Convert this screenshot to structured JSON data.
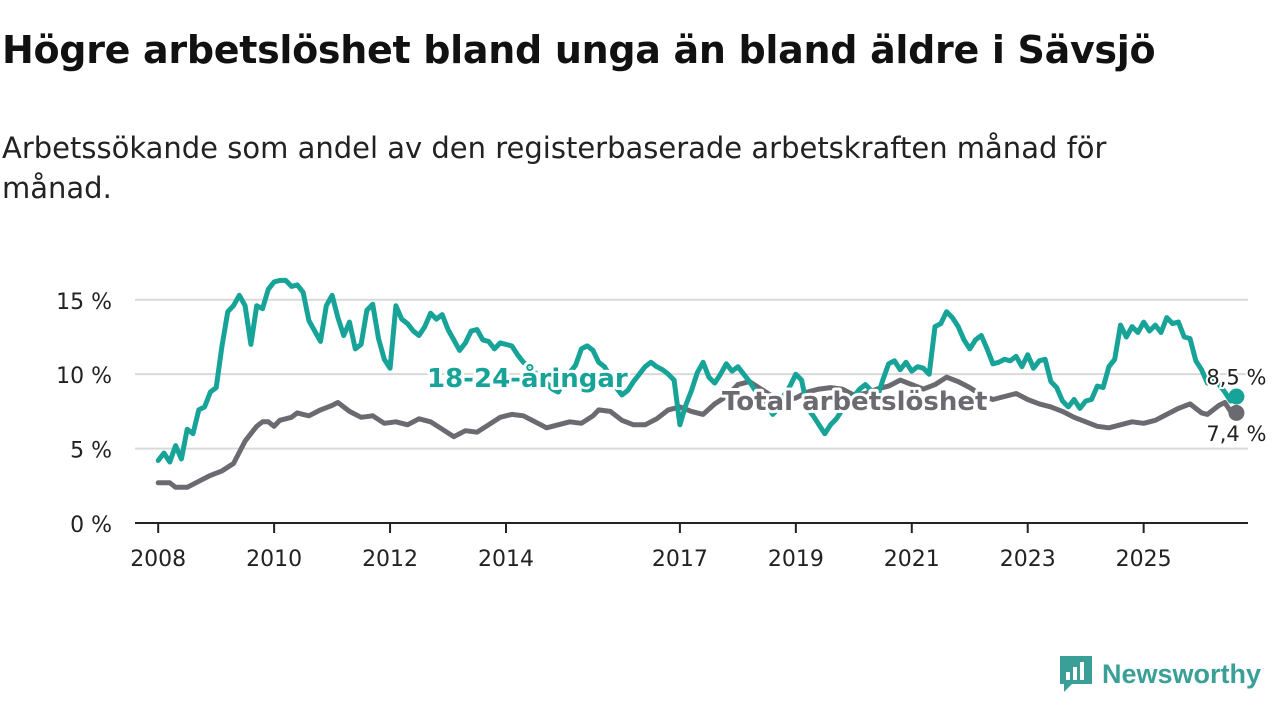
{
  "title": "Högre arbetslöshet bland unga än bland äldre i Sävsjö",
  "subtitle": "Arbetssökande som andel av den registerbaserade arbetskraften månad för månad.",
  "brand": {
    "name": "Newsworthy",
    "icon": "newsworthy-logo-icon"
  },
  "colors": {
    "youth": "#17a397",
    "total": "#6b6a70",
    "grid": "#d9d9d9",
    "axis": "#222222"
  },
  "chart_data": {
    "type": "line",
    "title": "Högre arbetslöshet bland unga än bland äldre i Sävsjö",
    "ylabel": "",
    "xlabel": "",
    "ylim": [
      0,
      17
    ],
    "xlim": [
      2007.6,
      2026.8
    ],
    "y_ticks": [
      0,
      5,
      10,
      15
    ],
    "y_tick_labels": [
      "0 %",
      "5 %",
      "10 %",
      "15 %"
    ],
    "x_ticks": [
      2008,
      2010,
      2012,
      2014,
      2017,
      2019,
      2021,
      2023,
      2025
    ],
    "x_tick_labels": [
      "2008",
      "2010",
      "2012",
      "2014",
      "2017",
      "2019",
      "2021",
      "2023",
      "2025"
    ],
    "grid": true,
    "series": [
      {
        "name": "18-24-åringar",
        "label": "18-24-åringar",
        "end_label": "8,5 %",
        "points": [
          [
            2008.0,
            4.2
          ],
          [
            2008.1,
            4.7
          ],
          [
            2008.2,
            4.1
          ],
          [
            2008.3,
            5.2
          ],
          [
            2008.4,
            4.3
          ],
          [
            2008.5,
            6.3
          ],
          [
            2008.6,
            6.0
          ],
          [
            2008.7,
            7.6
          ],
          [
            2008.8,
            7.8
          ],
          [
            2008.9,
            8.8
          ],
          [
            2009.0,
            9.1
          ],
          [
            2009.1,
            11.9
          ],
          [
            2009.2,
            14.2
          ],
          [
            2009.3,
            14.6
          ],
          [
            2009.4,
            15.3
          ],
          [
            2009.5,
            14.6
          ],
          [
            2009.6,
            12.0
          ],
          [
            2009.7,
            14.6
          ],
          [
            2009.8,
            14.4
          ],
          [
            2009.9,
            15.7
          ],
          [
            2010.0,
            16.2
          ],
          [
            2010.1,
            16.3
          ],
          [
            2010.2,
            16.3
          ],
          [
            2010.3,
            15.9
          ],
          [
            2010.4,
            16.0
          ],
          [
            2010.5,
            15.5
          ],
          [
            2010.6,
            13.6
          ],
          [
            2010.7,
            12.9
          ],
          [
            2010.8,
            12.2
          ],
          [
            2010.9,
            14.6
          ],
          [
            2011.0,
            15.3
          ],
          [
            2011.1,
            13.8
          ],
          [
            2011.2,
            12.6
          ],
          [
            2011.3,
            13.5
          ],
          [
            2011.4,
            11.7
          ],
          [
            2011.5,
            12.0
          ],
          [
            2011.6,
            14.3
          ],
          [
            2011.7,
            14.7
          ],
          [
            2011.8,
            12.4
          ],
          [
            2011.9,
            11.0
          ],
          [
            2012.0,
            10.4
          ],
          [
            2012.1,
            14.6
          ],
          [
            2012.2,
            13.7
          ],
          [
            2012.3,
            13.4
          ],
          [
            2012.4,
            12.9
          ],
          [
            2012.5,
            12.6
          ],
          [
            2012.6,
            13.2
          ],
          [
            2012.7,
            14.1
          ],
          [
            2012.8,
            13.7
          ],
          [
            2012.9,
            14.0
          ],
          [
            2013.0,
            13.0
          ],
          [
            2013.1,
            12.3
          ],
          [
            2013.2,
            11.6
          ],
          [
            2013.3,
            12.1
          ],
          [
            2013.4,
            12.9
          ],
          [
            2013.5,
            13.0
          ],
          [
            2013.6,
            12.3
          ],
          [
            2013.7,
            12.2
          ],
          [
            2013.8,
            11.7
          ],
          [
            2013.9,
            12.1
          ],
          [
            2014.0,
            12.0
          ],
          [
            2014.1,
            11.9
          ],
          [
            2014.2,
            11.3
          ],
          [
            2014.3,
            10.8
          ],
          [
            2014.4,
            10.5
          ],
          [
            2014.5,
            10.1
          ],
          [
            2014.6,
            9.8
          ],
          [
            2014.7,
            9.4
          ],
          [
            2014.8,
            9.0
          ],
          [
            2014.9,
            8.8
          ],
          [
            2015.0,
            9.5
          ],
          [
            2015.1,
            10.1
          ],
          [
            2015.2,
            10.6
          ],
          [
            2015.3,
            11.7
          ],
          [
            2015.4,
            11.9
          ],
          [
            2015.5,
            11.6
          ],
          [
            2015.6,
            10.8
          ],
          [
            2015.7,
            10.5
          ],
          [
            2015.8,
            9.8
          ],
          [
            2015.9,
            9.1
          ],
          [
            2016.0,
            8.6
          ],
          [
            2016.1,
            8.9
          ],
          [
            2016.2,
            9.5
          ],
          [
            2016.3,
            10.0
          ],
          [
            2016.4,
            10.5
          ],
          [
            2016.5,
            10.8
          ],
          [
            2016.6,
            10.5
          ],
          [
            2016.7,
            10.3
          ],
          [
            2016.8,
            10.0
          ],
          [
            2016.9,
            9.6
          ],
          [
            2017.0,
            6.6
          ],
          [
            2017.1,
            7.9
          ],
          [
            2017.2,
            8.9
          ],
          [
            2017.3,
            10.1
          ],
          [
            2017.4,
            10.8
          ],
          [
            2017.5,
            9.8
          ],
          [
            2017.6,
            9.4
          ],
          [
            2017.7,
            10.0
          ],
          [
            2017.8,
            10.7
          ],
          [
            2017.9,
            10.2
          ],
          [
            2018.0,
            10.5
          ],
          [
            2018.1,
            10.0
          ],
          [
            2018.2,
            9.5
          ],
          [
            2018.3,
            8.9
          ],
          [
            2018.4,
            8.4
          ],
          [
            2018.5,
            8.0
          ],
          [
            2018.6,
            7.3
          ],
          [
            2018.7,
            7.7
          ],
          [
            2018.8,
            8.6
          ],
          [
            2018.9,
            9.2
          ],
          [
            2019.0,
            10.0
          ],
          [
            2019.1,
            9.6
          ],
          [
            2019.2,
            7.7
          ],
          [
            2019.3,
            7.2
          ],
          [
            2019.4,
            6.6
          ],
          [
            2019.5,
            6.0
          ],
          [
            2019.6,
            6.6
          ],
          [
            2019.7,
            7.0
          ],
          [
            2019.8,
            7.6
          ],
          [
            2019.9,
            8.1
          ],
          [
            2020.0,
            8.5
          ],
          [
            2020.1,
            9.0
          ],
          [
            2020.2,
            9.3
          ],
          [
            2020.3,
            8.9
          ],
          [
            2020.4,
            8.4
          ],
          [
            2020.5,
            9.6
          ],
          [
            2020.6,
            10.7
          ],
          [
            2020.7,
            10.9
          ],
          [
            2020.8,
            10.3
          ],
          [
            2020.9,
            10.8
          ],
          [
            2021.0,
            10.2
          ],
          [
            2021.1,
            10.5
          ],
          [
            2021.2,
            10.4
          ],
          [
            2021.3,
            10.0
          ],
          [
            2021.4,
            13.2
          ],
          [
            2021.5,
            13.4
          ],
          [
            2021.6,
            14.2
          ],
          [
            2021.7,
            13.8
          ],
          [
            2021.8,
            13.2
          ],
          [
            2021.9,
            12.3
          ],
          [
            2022.0,
            11.7
          ],
          [
            2022.1,
            12.3
          ],
          [
            2022.2,
            12.6
          ],
          [
            2022.3,
            11.7
          ],
          [
            2022.4,
            10.7
          ],
          [
            2022.5,
            10.8
          ],
          [
            2022.6,
            11.0
          ],
          [
            2022.7,
            10.9
          ],
          [
            2022.8,
            11.2
          ],
          [
            2022.9,
            10.5
          ],
          [
            2023.0,
            11.3
          ],
          [
            2023.1,
            10.4
          ],
          [
            2023.2,
            10.9
          ],
          [
            2023.3,
            11.0
          ],
          [
            2023.4,
            9.5
          ],
          [
            2023.5,
            9.1
          ],
          [
            2023.6,
            8.2
          ],
          [
            2023.7,
            7.8
          ],
          [
            2023.8,
            8.3
          ],
          [
            2023.9,
            7.7
          ],
          [
            2024.0,
            8.2
          ],
          [
            2024.1,
            8.3
          ],
          [
            2024.2,
            9.2
          ],
          [
            2024.3,
            9.1
          ],
          [
            2024.4,
            10.5
          ],
          [
            2024.5,
            11.0
          ],
          [
            2024.6,
            13.3
          ],
          [
            2024.7,
            12.5
          ],
          [
            2024.8,
            13.2
          ],
          [
            2024.9,
            12.8
          ],
          [
            2025.0,
            13.5
          ],
          [
            2025.1,
            12.9
          ],
          [
            2025.2,
            13.3
          ],
          [
            2025.3,
            12.8
          ],
          [
            2025.4,
            13.8
          ],
          [
            2025.5,
            13.4
          ],
          [
            2025.6,
            13.5
          ],
          [
            2025.7,
            12.5
          ],
          [
            2025.8,
            12.4
          ],
          [
            2025.9,
            10.9
          ],
          [
            2026.0,
            10.3
          ],
          [
            2026.1,
            9.4
          ],
          [
            2026.2,
            9.8
          ],
          [
            2026.3,
            9.3
          ],
          [
            2026.4,
            8.8
          ],
          [
            2026.5,
            8.2
          ],
          [
            2026.6,
            8.5
          ]
        ]
      },
      {
        "name": "Total arbetslöshet",
        "label": "Total arbetslöshet",
        "end_label": "7,4 %",
        "points": [
          [
            2008.0,
            2.7
          ],
          [
            2008.2,
            2.7
          ],
          [
            2008.3,
            2.4
          ],
          [
            2008.5,
            2.4
          ],
          [
            2008.7,
            2.8
          ],
          [
            2008.9,
            3.2
          ],
          [
            2009.1,
            3.5
          ],
          [
            2009.3,
            4.0
          ],
          [
            2009.5,
            5.5
          ],
          [
            2009.7,
            6.5
          ],
          [
            2009.8,
            6.8
          ],
          [
            2009.9,
            6.8
          ],
          [
            2010.0,
            6.5
          ],
          [
            2010.1,
            6.9
          ],
          [
            2010.3,
            7.1
          ],
          [
            2010.4,
            7.4
          ],
          [
            2010.5,
            7.3
          ],
          [
            2010.6,
            7.2
          ],
          [
            2010.7,
            7.4
          ],
          [
            2010.8,
            7.6
          ],
          [
            2011.0,
            7.9
          ],
          [
            2011.1,
            8.1
          ],
          [
            2011.3,
            7.5
          ],
          [
            2011.5,
            7.1
          ],
          [
            2011.7,
            7.2
          ],
          [
            2011.9,
            6.7
          ],
          [
            2012.1,
            6.8
          ],
          [
            2012.3,
            6.6
          ],
          [
            2012.5,
            7.0
          ],
          [
            2012.7,
            6.8
          ],
          [
            2012.9,
            6.3
          ],
          [
            2013.1,
            5.8
          ],
          [
            2013.3,
            6.2
          ],
          [
            2013.5,
            6.1
          ],
          [
            2013.7,
            6.6
          ],
          [
            2013.9,
            7.1
          ],
          [
            2014.1,
            7.3
          ],
          [
            2014.3,
            7.2
          ],
          [
            2014.5,
            6.8
          ],
          [
            2014.7,
            6.4
          ],
          [
            2014.9,
            6.6
          ],
          [
            2015.1,
            6.8
          ],
          [
            2015.3,
            6.7
          ],
          [
            2015.5,
            7.2
          ],
          [
            2015.6,
            7.6
          ],
          [
            2015.8,
            7.5
          ],
          [
            2016.0,
            6.9
          ],
          [
            2016.2,
            6.6
          ],
          [
            2016.4,
            6.6
          ],
          [
            2016.6,
            7.0
          ],
          [
            2016.8,
            7.6
          ],
          [
            2017.0,
            7.8
          ],
          [
            2017.2,
            7.5
          ],
          [
            2017.4,
            7.3
          ],
          [
            2017.6,
            8.0
          ],
          [
            2017.8,
            8.5
          ],
          [
            2018.0,
            9.3
          ],
          [
            2018.2,
            9.5
          ],
          [
            2018.4,
            9.0
          ],
          [
            2018.6,
            8.5
          ],
          [
            2018.8,
            8.2
          ],
          [
            2019.0,
            8.4
          ],
          [
            2019.2,
            8.8
          ],
          [
            2019.4,
            9.0
          ],
          [
            2019.6,
            9.1
          ],
          [
            2019.8,
            9.0
          ],
          [
            2020.0,
            8.6
          ],
          [
            2020.2,
            8.7
          ],
          [
            2020.4,
            9.0
          ],
          [
            2020.6,
            9.2
          ],
          [
            2020.8,
            9.6
          ],
          [
            2021.0,
            9.3
          ],
          [
            2021.2,
            9.0
          ],
          [
            2021.4,
            9.3
          ],
          [
            2021.6,
            9.8
          ],
          [
            2021.8,
            9.5
          ],
          [
            2022.0,
            9.1
          ],
          [
            2022.2,
            8.6
          ],
          [
            2022.4,
            8.3
          ],
          [
            2022.6,
            8.5
          ],
          [
            2022.8,
            8.7
          ],
          [
            2023.0,
            8.3
          ],
          [
            2023.2,
            8.0
          ],
          [
            2023.4,
            7.8
          ],
          [
            2023.6,
            7.5
          ],
          [
            2023.8,
            7.1
          ],
          [
            2024.0,
            6.8
          ],
          [
            2024.2,
            6.5
          ],
          [
            2024.4,
            6.4
          ],
          [
            2024.6,
            6.6
          ],
          [
            2024.8,
            6.8
          ],
          [
            2025.0,
            6.7
          ],
          [
            2025.2,
            6.9
          ],
          [
            2025.4,
            7.3
          ],
          [
            2025.6,
            7.7
          ],
          [
            2025.8,
            8.0
          ],
          [
            2026.0,
            7.4
          ],
          [
            2026.1,
            7.3
          ],
          [
            2026.3,
            7.9
          ],
          [
            2026.4,
            8.1
          ],
          [
            2026.5,
            7.5
          ],
          [
            2026.6,
            7.4
          ]
        ]
      }
    ]
  }
}
